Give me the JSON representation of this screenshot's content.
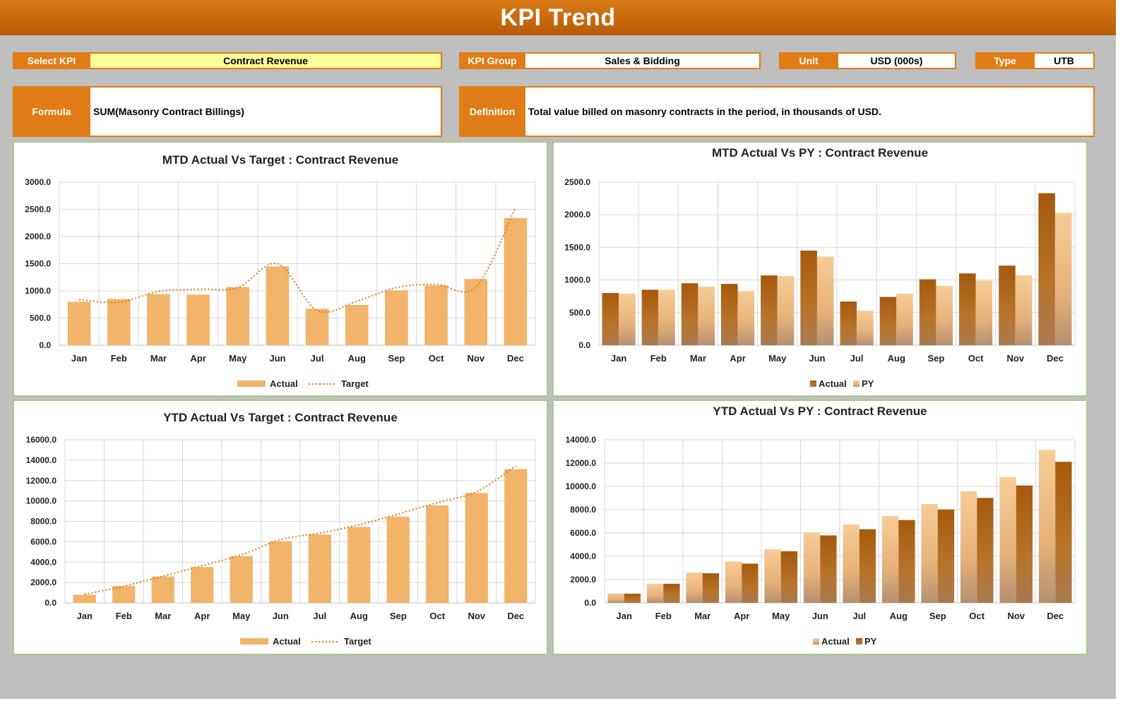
{
  "header": {
    "title": "KPI Trend"
  },
  "selector": {
    "select_kpi_label": "Select KPI",
    "select_kpi_value": "Contract Revenue",
    "kpi_group_label": "KPI Group",
    "kpi_group_value": "Sales & Bidding",
    "unit_label": "Unit",
    "unit_value": "USD (000s)",
    "type_label": "Type",
    "type_value": "UTB"
  },
  "info": {
    "formula_label": "Formula",
    "formula_value": "SUM(Masonry Contract Billings)",
    "definition_label": "Definition",
    "definition_value": "Total value billed on masonry contracts in the period, in thousands of USD."
  },
  "colors": {
    "accent": "#e07c16",
    "actual_bar": "#f2b36a",
    "target_line": "#d97a16",
    "dark_bar": "#a95d0e",
    "light_bar": "#f5c792"
  },
  "chart_data": [
    {
      "id": "mtd_target",
      "type": "bar",
      "title": "MTD Actual Vs Target : Contract Revenue",
      "categories": [
        "Jan",
        "Feb",
        "Mar",
        "Apr",
        "May",
        "Jun",
        "Jul",
        "Aug",
        "Sep",
        "Oct",
        "Nov",
        "Dec"
      ],
      "series": [
        {
          "name": "Actual",
          "kind": "bar",
          "values": [
            800,
            850,
            940,
            930,
            1070,
            1450,
            670,
            740,
            1010,
            1100,
            1220,
            2340
          ]
        },
        {
          "name": "Target",
          "kind": "line",
          "values": [
            840,
            790,
            990,
            1030,
            1060,
            1500,
            640,
            810,
            1060,
            1120,
            1070,
            2530
          ]
        }
      ],
      "ylim": [
        0,
        3000
      ],
      "yticks": [
        "0.0",
        "500.0",
        "1000.0",
        "1500.0",
        "2000.0",
        "2500.0",
        "3000.0"
      ],
      "legend": "bottom",
      "grid": true
    },
    {
      "id": "mtd_py",
      "type": "bar",
      "title": "MTD Actual Vs PY : Contract Revenue",
      "categories": [
        "Jan",
        "Feb",
        "Mar",
        "Apr",
        "May",
        "Jun",
        "Jul",
        "Aug",
        "Sep",
        "Oct",
        "Nov",
        "Dec"
      ],
      "series": [
        {
          "name": "Actual",
          "kind": "bar",
          "values": [
            800,
            850,
            950,
            940,
            1070,
            1450,
            670,
            740,
            1010,
            1100,
            1220,
            2330
          ]
        },
        {
          "name": "PY",
          "kind": "bar",
          "values": [
            790,
            850,
            900,
            830,
            1060,
            1360,
            530,
            790,
            910,
            990,
            1070,
            2030
          ]
        }
      ],
      "ylim": [
        0,
        2500
      ],
      "yticks": [
        "0.0",
        "500.0",
        "1000.0",
        "1500.0",
        "2000.0",
        "2500.0"
      ],
      "legend": "bottom",
      "grid": true
    },
    {
      "id": "ytd_target",
      "type": "bar",
      "title": "YTD Actual Vs Target : Contract Revenue",
      "categories": [
        "Jan",
        "Feb",
        "Mar",
        "Apr",
        "May",
        "Jun",
        "Jul",
        "Aug",
        "Sep",
        "Oct",
        "Nov",
        "Dec"
      ],
      "series": [
        {
          "name": "Actual",
          "kind": "bar",
          "values": [
            800,
            1650,
            2590,
            3520,
            4590,
            6040,
            6710,
            7450,
            8460,
            9560,
            10780,
            13120
          ]
        },
        {
          "name": "Target",
          "kind": "line",
          "values": [
            840,
            1630,
            2620,
            3650,
            4710,
            6210,
            6850,
            7660,
            8720,
            9840,
            10910,
            13440
          ]
        }
      ],
      "ylim": [
        0,
        16000
      ],
      "yticks": [
        "0.0",
        "2000.0",
        "4000.0",
        "6000.0",
        "8000.0",
        "10000.0",
        "12000.0",
        "14000.0",
        "16000.0"
      ],
      "legend": "bottom",
      "grid": true
    },
    {
      "id": "ytd_py",
      "type": "bar",
      "title": "YTD Actual Vs PY : Contract Revenue",
      "categories": [
        "Jan",
        "Feb",
        "Mar",
        "Apr",
        "May",
        "Jun",
        "Jul",
        "Aug",
        "Sep",
        "Oct",
        "Nov",
        "Dec"
      ],
      "series": [
        {
          "name": "Actual",
          "kind": "bar",
          "values": [
            800,
            1650,
            2600,
            3540,
            4610,
            6060,
            6730,
            7470,
            8480,
            9580,
            10800,
            13130
          ]
        },
        {
          "name": "PY",
          "kind": "bar",
          "values": [
            790,
            1640,
            2540,
            3370,
            4430,
            5790,
            6320,
            7110,
            8020,
            9010,
            10080,
            12110
          ]
        }
      ],
      "ylim": [
        0,
        14000
      ],
      "yticks": [
        "0.0",
        "2000.0",
        "4000.0",
        "6000.0",
        "8000.0",
        "10000.0",
        "12000.0",
        "14000.0"
      ],
      "legend": "bottom",
      "grid": true
    }
  ]
}
